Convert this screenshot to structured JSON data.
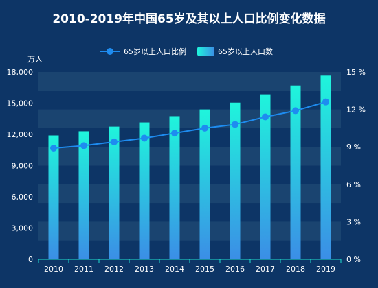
{
  "chart_data": {
    "type": "bar",
    "title": "2010-2019年中国65岁及其以上人口比例变化数据",
    "xlabel": "",
    "ylabel": "万人",
    "categories": [
      "2010",
      "2011",
      "2012",
      "2013",
      "2014",
      "2015",
      "2016",
      "2017",
      "2018",
      "2019"
    ],
    "series": [
      {
        "name": "65岁以上人口数",
        "type": "bar",
        "axis": "left",
        "values": [
          11900,
          12300,
          12750,
          13150,
          13750,
          14400,
          15050,
          15850,
          16700,
          17650
        ]
      },
      {
        "name": "65岁以上人口比例",
        "type": "line",
        "axis": "right",
        "values": [
          8.9,
          9.1,
          9.4,
          9.7,
          10.1,
          10.5,
          10.8,
          11.4,
          11.9,
          12.6
        ]
      }
    ],
    "y_left": {
      "ylim": [
        0,
        18000
      ],
      "ticks": [
        "0",
        "3,000",
        "6,000",
        "9,000",
        "12,000",
        "15,000",
        "18,000"
      ],
      "tick_values": [
        0,
        3000,
        6000,
        9000,
        12000,
        15000,
        18000
      ]
    },
    "y_right": {
      "ylim": [
        0,
        15
      ],
      "ticks": [
        "0 %",
        "3 %",
        "6 %",
        "9 %",
        "12 %",
        "15 %"
      ],
      "tick_values": [
        0,
        3,
        6,
        9,
        12,
        15
      ]
    },
    "legend_position": "top-center",
    "grid": "alternating horizontal bands",
    "colors": {
      "background": "#0d3566",
      "bar_top": "#1ff5dc",
      "bar_bottom": "#3b8ee6",
      "line": "#1e8cf0",
      "band": "#1a4470",
      "axis": "#1ee0d0"
    }
  }
}
